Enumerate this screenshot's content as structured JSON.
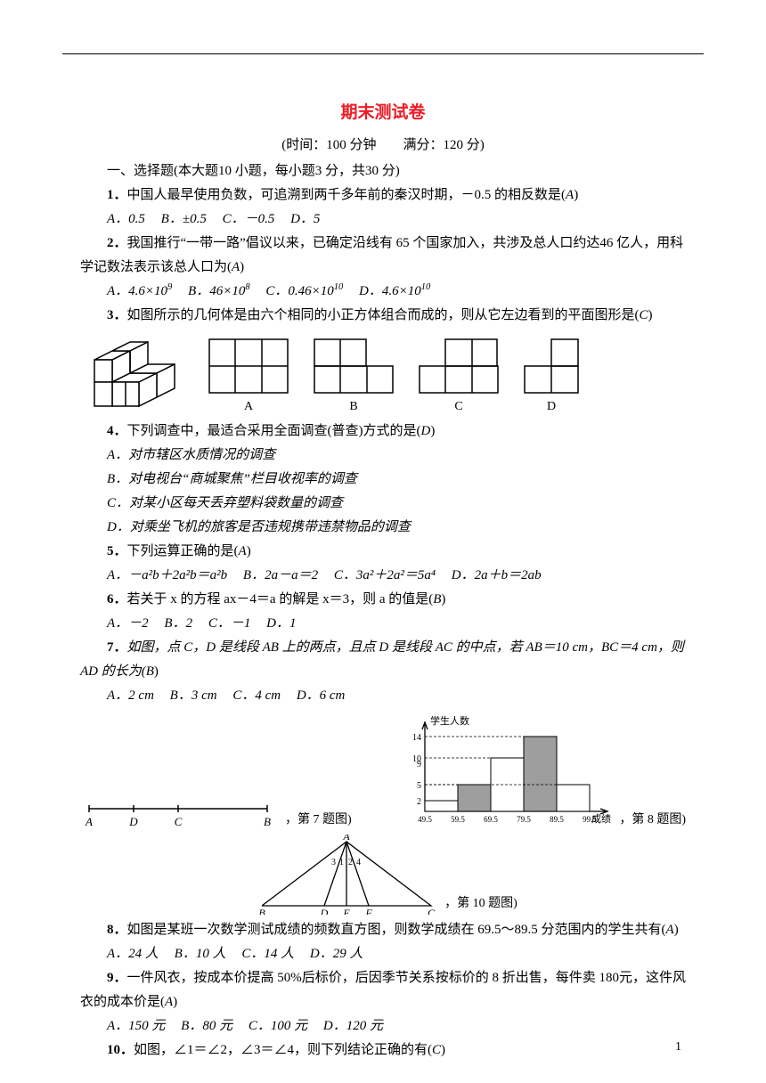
{
  "title": "期末测试卷",
  "subtitle": "(时间：100 分钟　　满分：120 分)",
  "section1": "一、选择题(本大题10 小题，每小题3 分，共30 分)",
  "page_number": "1",
  "q1": {
    "stem_a": "1．",
    "stem_b": "中国人最早使用负数，可追溯到两千多年前的秦汉时期，－0.5 的相反数是(",
    "ans": "A",
    "stem_c": ")",
    "opts": {
      "A": "A．0.5",
      "B": "B．±0.5",
      "C": "C．－0.5",
      "D": "D．5"
    }
  },
  "q2": {
    "stem_a": "2．",
    "stem_b": "我国推行“一带一路”倡议以来，已确定沿线有 65 个国家加入，共涉及总人口约达46 亿人，用科学记数法表示该总人口为(",
    "ans": "A",
    "stem_c": ")",
    "opts": {
      "A_pre": "A．4.6×10",
      "A_exp": "9",
      "B_pre": "B．46×10",
      "B_exp": "8",
      "C_pre": "C．0.46×10",
      "C_exp": "10",
      "D_pre": "D．4.6×10",
      "D_exp": "10"
    }
  },
  "q3": {
    "stem_a": "3．",
    "stem_b": "如图所示的几何体是由六个相同的小正方体组合而成的，则从它左边看到的平面图形是(",
    "ans": "C",
    "stem_c": ")",
    "labels": {
      "A": "A",
      "B": "B",
      "C": "C",
      "D": "D"
    }
  },
  "q4": {
    "stem_a": "4．",
    "stem_b": "下列调查中，最适合采用全面调查(普查)方式的是(",
    "ans": "D",
    "stem_c": ")",
    "opts": {
      "A": "A．对市辖区水质情况的调查",
      "B": "B．对电视台“商城聚焦”栏目收视率的调查",
      "C": "C．对某小区每天丢弃塑料袋数量的调查",
      "D": "D．对乘坐飞机的旅客是否违规携带违禁物品的调查"
    }
  },
  "q5": {
    "stem_a": "5．",
    "stem_b": "下列运算正确的是(",
    "ans": "A",
    "stem_c": ")",
    "opts": {
      "A": "A．－a²b＋2a²b＝a²b",
      "B": "B．2a－a＝2",
      "C": "C．3a²＋2a²＝5a⁴",
      "D": "D．2a＋b＝2ab"
    }
  },
  "q6": {
    "stem_a": "6．",
    "stem_b": "若关于 x 的方程 ax－4＝a 的解是 x＝3，则 a 的值是(",
    "ans": "B",
    "stem_c": ")",
    "opts": {
      "A": "A．－2",
      "B": "B．2",
      "C": "C．－1",
      "D": "D．1"
    }
  },
  "q7": {
    "stem_a": "7．",
    "stem_b": "如图，点 C，D 是线段 AB 上的两点，且点 D 是线段 AC 的中点，若 AB＝10 cm，BC＝4 cm，则 AD 的长为(",
    "ans": "B",
    "stem_c": ")",
    "opts": {
      "A": "A．2 cm",
      "B": "B．3 cm",
      "C": "C．4 cm",
      "D": "D．6 cm"
    },
    "cap": "，第 7 题图)",
    "labels": {
      "A": "A",
      "D": "D",
      "C": "C",
      "B": "B"
    }
  },
  "q8": {
    "stem_a": "8．",
    "stem_b": "如图是某班一次数学测试成绩的频数直方图，则数学成绩在 69.5～89.5 分范围内的学生共有(",
    "ans": "A",
    "stem_c": ")",
    "opts": {
      "A": "A．24 人",
      "B": "B．10 人",
      "C": "C．14 人",
      "D": "D．29 人"
    },
    "cap": "，第 8 题图)",
    "chart": {
      "ylabel": "学生人数",
      "xlabel": "成绩",
      "xticks": [
        "49.5",
        "59.5",
        "69.5",
        "79.5",
        "89.5",
        "99.5"
      ],
      "yticks": [
        "2",
        "5",
        "9",
        "10",
        "14"
      ],
      "bars": [
        {
          "h": 2,
          "fill": "#ffffff"
        },
        {
          "h": 5,
          "fill": "#9e9e9e"
        },
        {
          "h": 10,
          "fill": "#ffffff"
        },
        {
          "h": 14,
          "fill": "#9e9e9e"
        },
        {
          "h": 5,
          "fill": "#ffffff"
        }
      ],
      "ymax": 15,
      "colors": {
        "axis": "#000000",
        "dash": "#000000"
      }
    }
  },
  "q9": {
    "stem_a": "9．",
    "stem_b": "一件风衣，按成本价提高 50%后标价，后因季节关系按标价的 8 折出售，每件卖 180元，这件风衣的成本价是(",
    "ans": "A",
    "stem_c": ")",
    "opts": {
      "A": "A．150 元",
      "B": "B．80 元",
      "C": "C．100 元",
      "D": "D．120 元"
    }
  },
  "q10": {
    "stem_a": "10．",
    "stem_b": "如图，∠1＝∠2，∠3＝∠4，则下列结论正确的有(",
    "ans": "C",
    "stem_c": ")",
    "cap": "，第 10 题图)",
    "labels": {
      "A": "A",
      "B": "B",
      "C": "C",
      "D": "D",
      "E": "E",
      "F": "F",
      "n1": "1",
      "n2": "2",
      "n3": "3",
      "n4": "4"
    }
  }
}
